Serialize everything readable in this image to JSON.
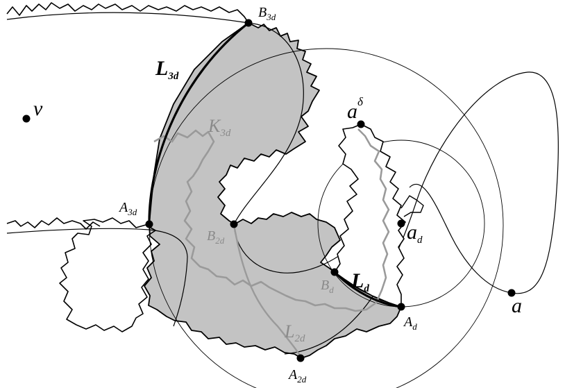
{
  "diagram": {
    "colors": {
      "region_fill": "#c3c3c3",
      "gray_path": "#9a9a9a",
      "stroke": "#000000"
    },
    "labels": {
      "v": "v",
      "a": "a",
      "a_d_main": "a",
      "a_d_sub": "d",
      "a_delta_main": "a",
      "a_delta_sup": "δ",
      "B3d_main": "B",
      "B3d_sub": "3d",
      "L3d_main": "L",
      "L3d_sub": "3d",
      "K3d_main": "K",
      "K3d_sub": "3d",
      "A3d_main": "A",
      "A3d_sub": "3d",
      "B2d_main": "B",
      "B2d_sub": "2d",
      "Bd_main": "B",
      "Bd_sub": "d",
      "Ld_main": "L",
      "Ld_sub": "d",
      "Ad_main": "A",
      "Ad_sub": "d",
      "L2d_main": "L",
      "L2d_sub": "2d",
      "A2d_main": "A",
      "A2d_sub": "2d"
    }
  }
}
